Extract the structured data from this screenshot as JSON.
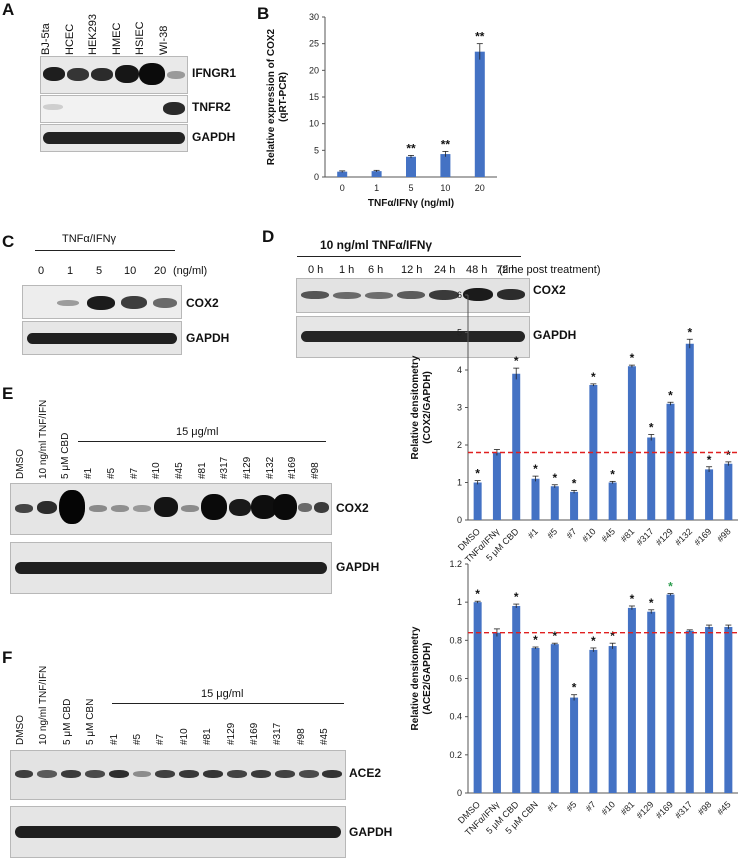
{
  "panelA": {
    "label": "A",
    "lanes": [
      "BJ-5ta",
      "HCEC",
      "HEK293",
      "HMEC",
      "HSIEC",
      "WI-38"
    ],
    "rows": [
      "IFNGR1",
      "TNFR2",
      "GAPDH"
    ]
  },
  "panelB": {
    "label": "B",
    "chart_data": {
      "type": "bar",
      "categories": [
        "0",
        "1",
        "5",
        "10",
        "20"
      ],
      "values": [
        1.0,
        1.1,
        3.8,
        4.3,
        23.5
      ],
      "errors": [
        0.15,
        0.15,
        0.25,
        0.5,
        1.5
      ],
      "significance": [
        "",
        "",
        "**",
        "**",
        "**"
      ],
      "xlabel": "TNFα/IFNγ (ng/ml)",
      "ylabel": "Relative expression of COX2 (qRT-PCR)",
      "ylim": [
        0,
        30
      ],
      "yticks": [
        "0",
        "5",
        "10",
        "15",
        "20",
        "25",
        "30"
      ]
    }
  },
  "panelC": {
    "label": "C",
    "treatment": "TNFα/IFNγ",
    "doses": [
      "0",
      "1",
      "5",
      "10",
      "20"
    ],
    "unit": "(ng/ml)",
    "rows": [
      "COX2",
      "GAPDH"
    ]
  },
  "panelD": {
    "label": "D",
    "treatment": "10 ng/ml TNFα/IFNγ",
    "times": [
      "0 h",
      "1 h",
      "6 h",
      "12 h",
      "24 h",
      "48 h",
      "72 h"
    ],
    "note": "(time post treatment)",
    "rows": [
      "COX2",
      "GAPDH"
    ]
  },
  "panelE": {
    "label": "E",
    "lanes": [
      "DMSO",
      "10 ng/ml TNF/IFN",
      "5 μM CBD",
      "#1",
      "#5",
      "#7",
      "#10",
      "#45",
      "#81",
      "#317",
      "#129",
      "#132",
      "#169",
      "#98"
    ],
    "conc": "15 μg/ml",
    "rows": [
      "COX2",
      "GAPDH"
    ],
    "chart_data": {
      "type": "bar",
      "categories": [
        "DMSO",
        "TNFα/IFNγ",
        "5 μM CBD",
        "#1",
        "#5",
        "#7",
        "#10",
        "#45",
        "#81",
        "#317",
        "#129",
        "#132",
        "#169",
        "#98"
      ],
      "values": [
        1.0,
        1.8,
        3.9,
        1.1,
        0.9,
        0.75,
        3.6,
        1.0,
        4.1,
        2.2,
        3.1,
        4.7,
        1.35,
        1.5
      ],
      "errors": [
        0.05,
        0.08,
        0.15,
        0.07,
        0.04,
        0.04,
        0.03,
        0.03,
        0.03,
        0.08,
        0.04,
        0.12,
        0.07,
        0.05
      ],
      "significance": [
        "*",
        "",
        "*",
        "*",
        "*",
        "*",
        "*",
        "*",
        "*",
        "*",
        "*",
        "*",
        "*",
        "*"
      ],
      "ylabel": "Relative densitometry (COX2/GAPDH)",
      "ylim": [
        0,
        6
      ],
      "yticks": [
        "0",
        "1",
        "2",
        "3",
        "4",
        "5",
        "6"
      ],
      "reference_line": 1.8
    }
  },
  "panelF": {
    "label": "F",
    "lanes": [
      "DMSO",
      "10 ng/ml TNF/IFN",
      "5 μM CBD",
      "5 μM CBN",
      "#1",
      "#5",
      "#7",
      "#10",
      "#81",
      "#129",
      "#169",
      "#317",
      "#98",
      "#45"
    ],
    "conc": "15 μg/ml",
    "rows": [
      "ACE2",
      "GAPDH"
    ],
    "chart_data": {
      "type": "bar",
      "categories": [
        "DMSO",
        "TNFα/IFNγ",
        "5 μM CBD",
        "5 μM CBN",
        "#1",
        "#5",
        "#7",
        "#10",
        "#81",
        "#129",
        "#169",
        "#317",
        "#98",
        "#45"
      ],
      "values": [
        1.0,
        0.84,
        0.98,
        0.76,
        0.78,
        0.5,
        0.75,
        0.77,
        0.97,
        0.95,
        1.04,
        0.85,
        0.87,
        0.87
      ],
      "errors": [
        0.005,
        0.02,
        0.01,
        0.005,
        0.005,
        0.015,
        0.01,
        0.015,
        0.01,
        0.01,
        0.005,
        0.005,
        0.01,
        0.01
      ],
      "significance": [
        "*",
        "",
        "*",
        "*",
        "*",
        "*",
        "*",
        "*",
        "*",
        "*",
        "*",
        "",
        "",
        ""
      ],
      "ylabel": "Relative densitometry (ACE2/GAPDH)",
      "ylim": [
        0,
        1.2
      ],
      "yticks": [
        "0",
        "0.2",
        "0.4",
        "0.6",
        "0.8",
        "1",
        "1.2"
      ],
      "reference_line": 0.84
    }
  },
  "colors": {
    "bar": "#4472c4",
    "ref": "#e02020",
    "star_green": "#2e9e4f"
  }
}
